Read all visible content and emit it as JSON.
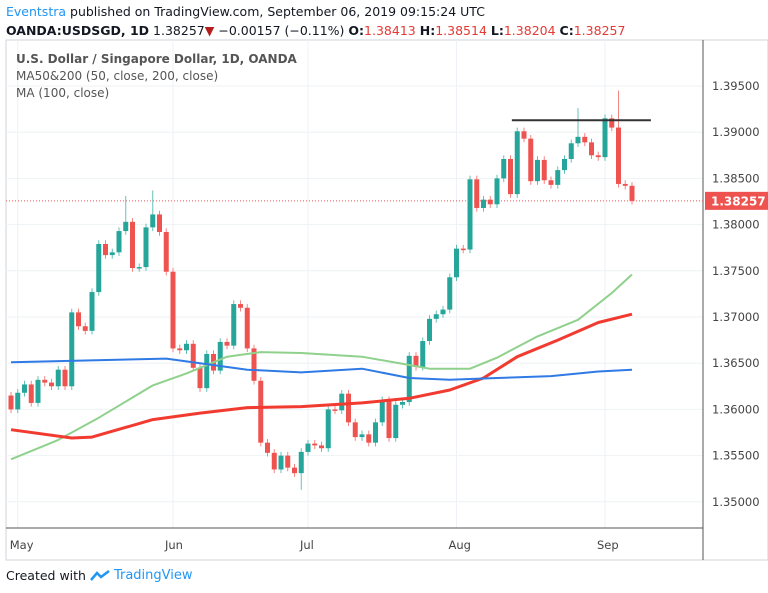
{
  "header": {
    "author": "Eventstra",
    "published_text": "published on TradingView.com, September 06, 2019 09:15:24 UTC",
    "symbol": "OANDA:USDSGD, 1D",
    "last": "1.38257",
    "change": "−0.00157 (−0.11%)",
    "o_label": "O:",
    "o": "1.38413",
    "h_label": "H:",
    "h": "1.38514",
    "l_label": "L:",
    "l": "1.38204",
    "c_label": "C:",
    "c": "1.38257"
  },
  "legend": {
    "title": "U.S. Dollar / Singapore Dollar, 1D, OANDA",
    "ma1": "MA50&200 (50, close, 200, close)",
    "ma2": "MA (100, close)"
  },
  "footer": {
    "created_with": "Created with",
    "brand": "TradingView"
  },
  "colors": {
    "up": "#26a69a",
    "down": "#ef5350",
    "ma50": "#8fd18c",
    "ma200": "#f23b30",
    "ma100": "#2f7ae5",
    "resistance": "#333333"
  },
  "chart_data": {
    "type": "candlestick",
    "title": "U.S. Dollar / Singapore Dollar, 1D, OANDA",
    "ylim": [
      1.3475,
      1.3975
    ],
    "y_ticks": [
      "1.39500",
      "1.39000",
      "1.38500",
      "1.38000",
      "1.37500",
      "1.37000",
      "1.36500",
      "1.36000",
      "1.35500",
      "1.35000"
    ],
    "x_ticks": [
      {
        "label": "May",
        "index": 1
      },
      {
        "label": "Jun",
        "index": 24
      },
      {
        "label": "Jul",
        "index": 44
      },
      {
        "label": "Aug",
        "index": 66
      },
      {
        "label": "Sep",
        "index": 88
      }
    ],
    "grid": true,
    "first_open": 1.3615,
    "close": [
      1.36,
      1.3618,
      1.3627,
      1.3607,
      1.3632,
      1.3629,
      1.3625,
      1.3643,
      1.3625,
      1.3705,
      1.369,
      1.3685,
      1.3727,
      1.3779,
      1.3767,
      1.377,
      1.3793,
      1.3803,
      1.3753,
      1.3754,
      1.3797,
      1.3811,
      1.3792,
      1.3749,
      1.3666,
      1.3664,
      1.3671,
      1.3645,
      1.3623,
      1.366,
      1.3642,
      1.3673,
      1.3669,
      1.3714,
      1.371,
      1.3666,
      1.3631,
      1.3564,
      1.3553,
      1.3535,
      1.355,
      1.3537,
      1.3531,
      1.3554,
      1.3563,
      1.3561,
      1.3558,
      1.36,
      1.3599,
      1.3617,
      1.3586,
      1.357,
      1.3573,
      1.3564,
      1.3586,
      1.361,
      1.3569,
      1.3605,
      1.3608,
      1.3658,
      1.3646,
      1.3674,
      1.3698,
      1.3703,
      1.3708,
      1.3743,
      1.3774,
      1.3773,
      1.3849,
      1.3818,
      1.3827,
      1.3822,
      1.385,
      1.3871,
      1.3833,
      1.3901,
      1.3893,
      1.3847,
      1.387,
      1.3848,
      1.3843,
      1.3859,
      1.3871,
      1.3888,
      1.3895,
      1.3889,
      1.3875,
      1.3873,
      1.3915,
      1.3905,
      1.3844,
      1.3842,
      1.38257
    ],
    "notable_highs": {
      "17": 1.3831,
      "21": 1.3837,
      "84": 1.3926,
      "90": 1.3945
    },
    "notable_lows": {
      "43": 1.3513
    },
    "last_price_label": "1.38257",
    "series": [
      {
        "name": "MA50",
        "color": "#8fd18c",
        "points": [
          [
            0,
            1.3546
          ],
          [
            7,
            1.3567
          ],
          [
            13,
            1.3591
          ],
          [
            21,
            1.3626
          ],
          [
            26,
            1.3639
          ],
          [
            32,
            1.3657
          ],
          [
            37,
            1.3662
          ],
          [
            43,
            1.3661
          ],
          [
            52,
            1.3657
          ],
          [
            59,
            1.3648
          ],
          [
            62,
            1.3644
          ],
          [
            68,
            1.3644
          ],
          [
            72,
            1.3656
          ],
          [
            78,
            1.3679
          ],
          [
            84,
            1.3697
          ],
          [
            89,
            1.3726
          ],
          [
            92,
            1.3746
          ]
        ]
      },
      {
        "name": "MA200",
        "color": "#f23b30",
        "points": [
          [
            0,
            1.3578
          ],
          [
            9,
            1.3569
          ],
          [
            12,
            1.357
          ],
          [
            21,
            1.3589
          ],
          [
            28,
            1.3596
          ],
          [
            35,
            1.3602
          ],
          [
            43,
            1.3603
          ],
          [
            52,
            1.3607
          ],
          [
            59,
            1.3612
          ],
          [
            65,
            1.3621
          ],
          [
            70,
            1.3634
          ],
          [
            75,
            1.3657
          ],
          [
            81,
            1.3675
          ],
          [
            87,
            1.3694
          ],
          [
            92,
            1.3703
          ]
        ]
      },
      {
        "name": "MA100",
        "color": "#2f7ae5",
        "points": [
          [
            0,
            1.3651
          ],
          [
            23,
            1.3655
          ],
          [
            35,
            1.3643
          ],
          [
            43,
            1.364
          ],
          [
            52,
            1.3644
          ],
          [
            59,
            1.3634
          ],
          [
            65,
            1.3632
          ],
          [
            72,
            1.3634
          ],
          [
            80,
            1.3636
          ],
          [
            87,
            1.3641
          ],
          [
            92,
            1.3643
          ]
        ]
      }
    ],
    "resistance_line": {
      "from_index": 74.2,
      "to_index": 94.8,
      "price": 1.3913
    }
  }
}
